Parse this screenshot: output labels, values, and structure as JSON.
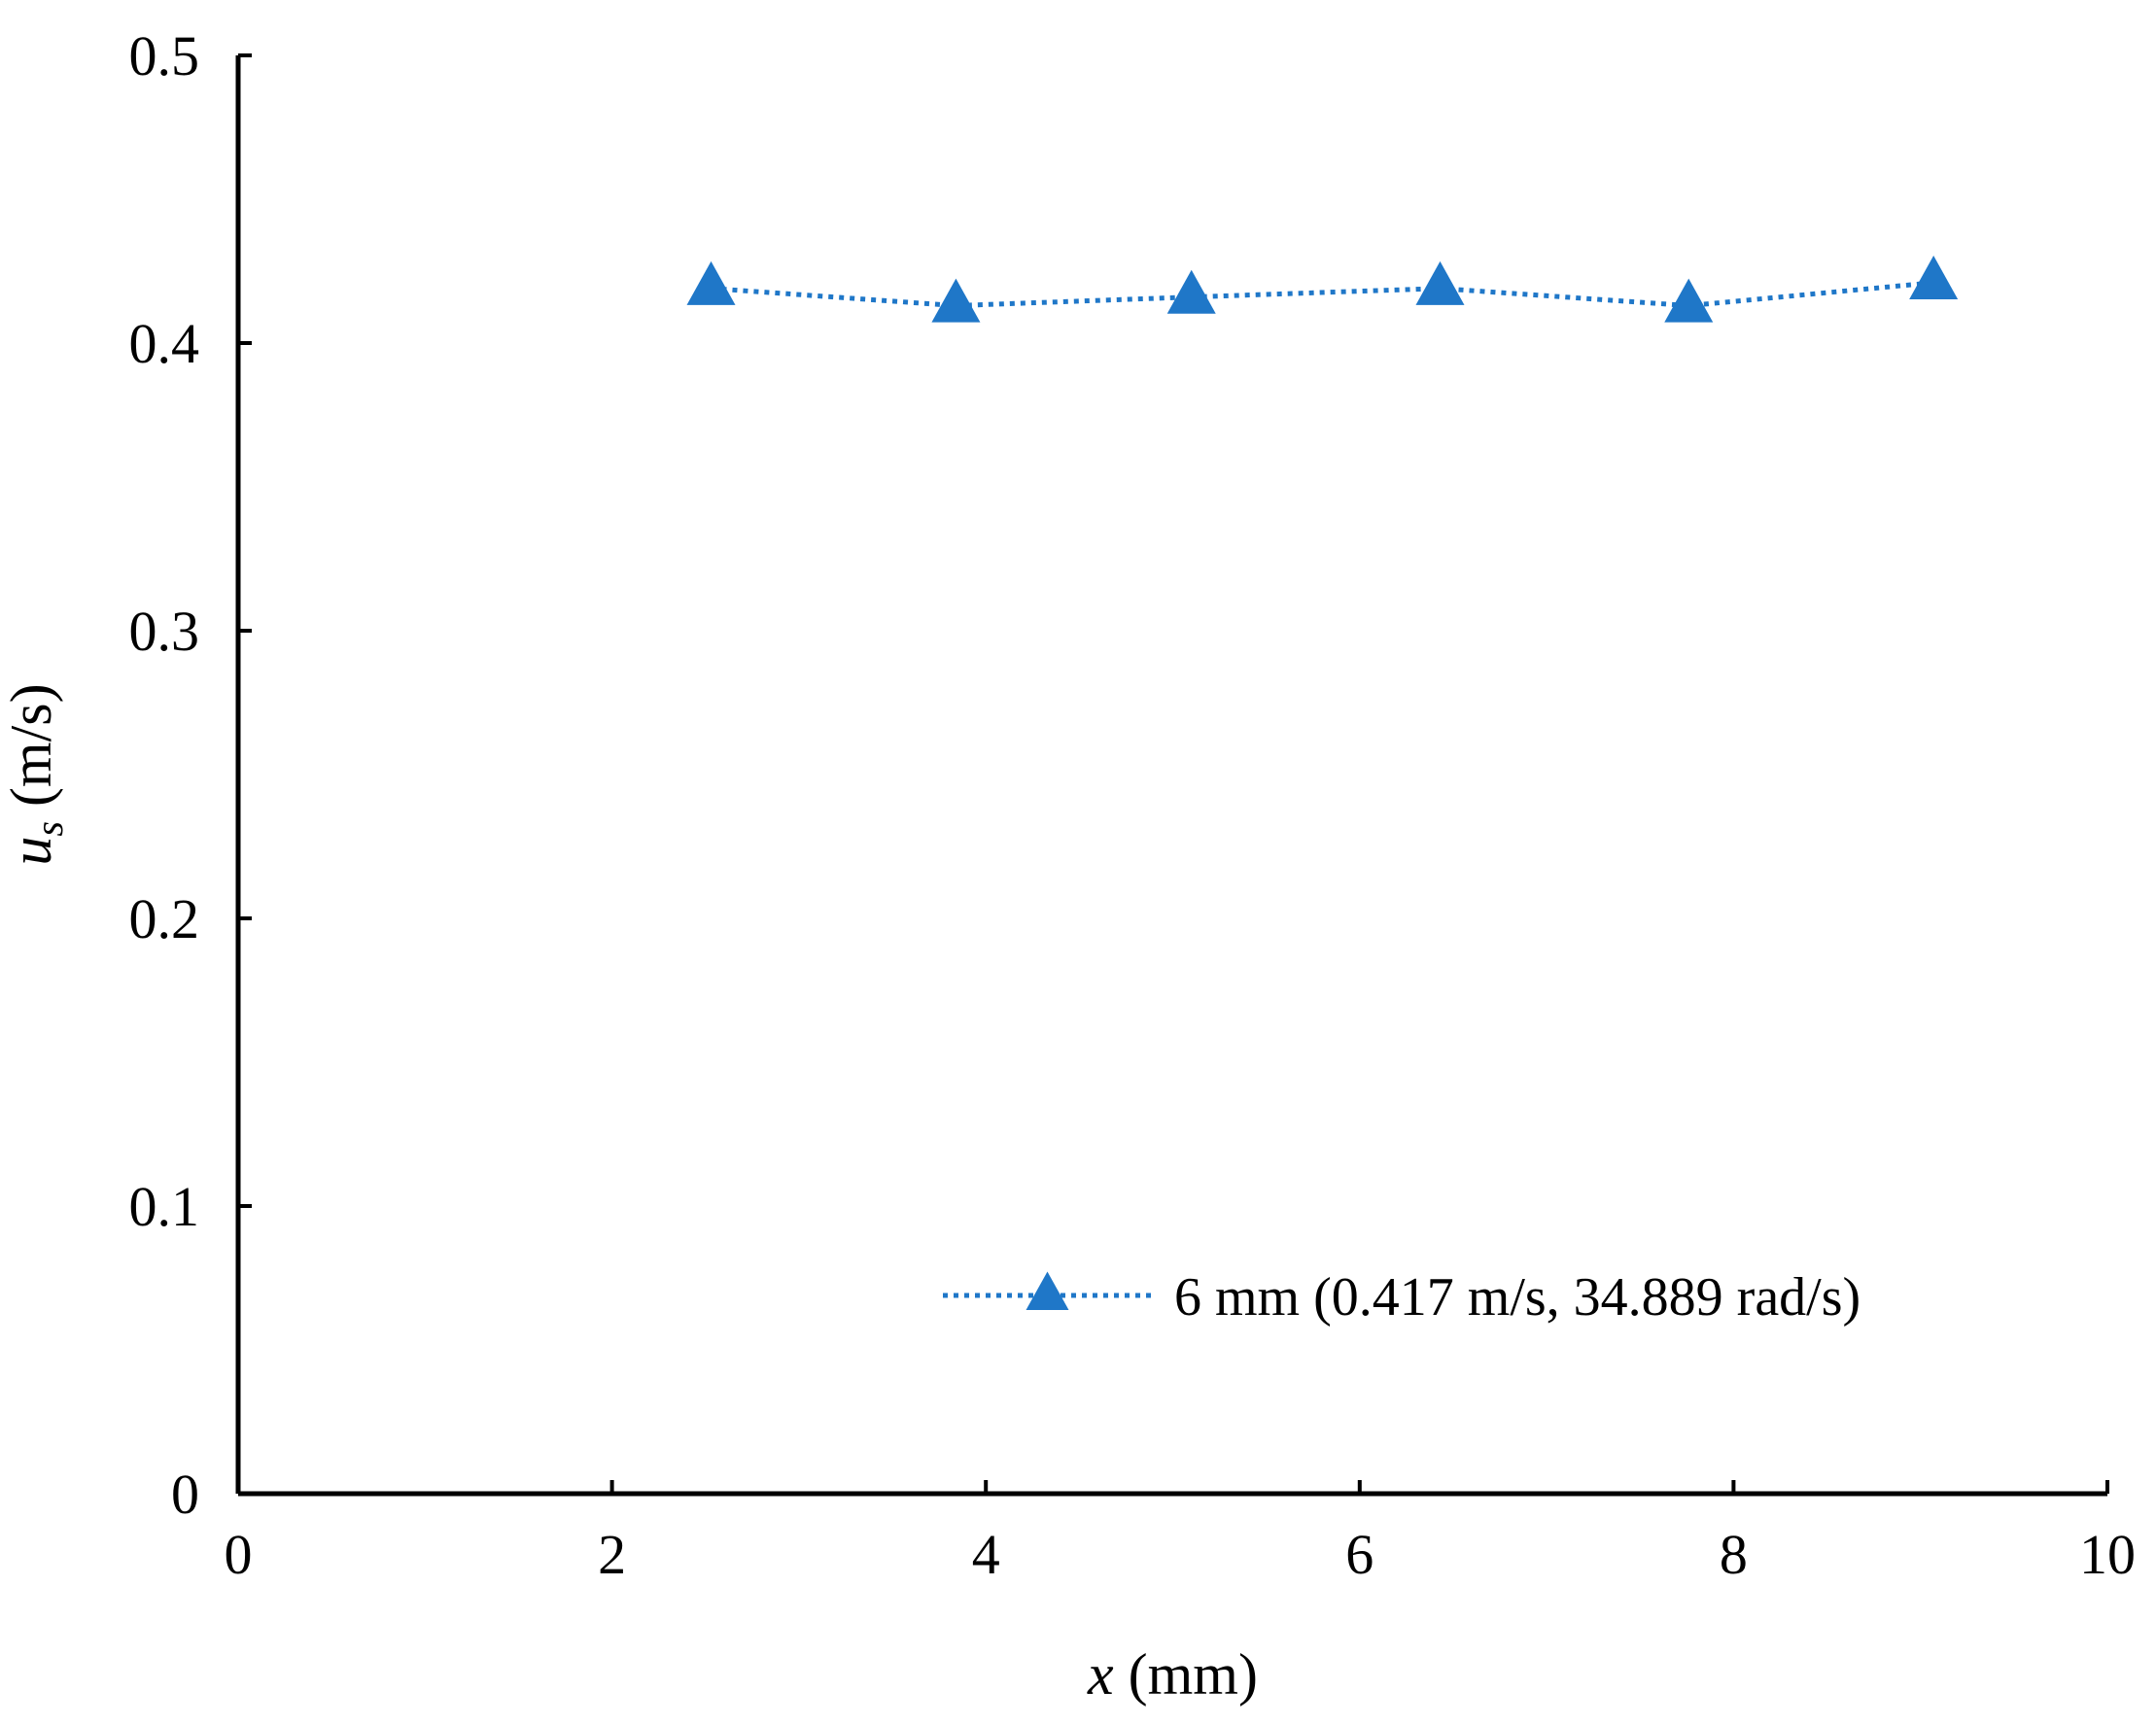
{
  "chart_data": {
    "type": "line",
    "x_axis": {
      "label_var": "x",
      "label_unit": " (mm)",
      "min": 0,
      "max": 10,
      "ticks": [
        0,
        2,
        4,
        6,
        8,
        10
      ],
      "tick_labels": [
        "0",
        "2",
        "4",
        "6",
        "8",
        "10"
      ]
    },
    "y_axis": {
      "label_var": "u",
      "label_sub": "s",
      "label_unit": " (m/s)",
      "min": 0,
      "max": 0.5,
      "ticks": [
        0,
        0.1,
        0.2,
        0.3,
        0.4,
        0.5
      ],
      "tick_labels": [
        "0",
        "0.1",
        "0.2",
        "0.3",
        "0.4",
        "0.5"
      ]
    },
    "grid": false,
    "legend_position": "bottom-right",
    "series": [
      {
        "name": "6 mm (0.417 m/s, 34.889 rad/s)",
        "color": "#1F77C8",
        "line_style": "dotted",
        "marker": "triangle",
        "x": [
          2.53,
          3.84,
          5.1,
          6.43,
          7.76,
          9.07
        ],
        "y": [
          0.419,
          0.413,
          0.416,
          0.419,
          0.413,
          0.421
        ]
      }
    ]
  }
}
